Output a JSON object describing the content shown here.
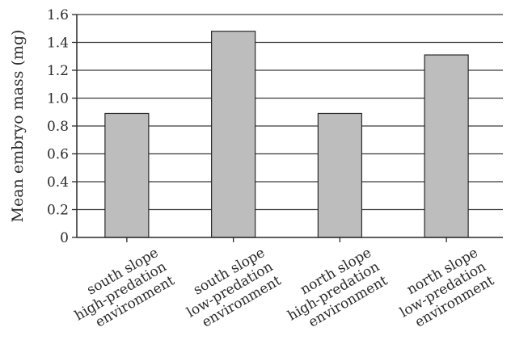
{
  "chart_data": {
    "type": "bar",
    "title": "",
    "xlabel": "",
    "ylabel": "Mean embryo mass (mg)",
    "ylim": [
      0,
      1.6
    ],
    "yticks": [
      0,
      0.2,
      0.4,
      0.6,
      0.8,
      1.0,
      1.2,
      1.4,
      1.6
    ],
    "ytick_labels": [
      "0",
      "0.2",
      "0.4",
      "0.6",
      "0.8",
      "1.0",
      "1.2",
      "1.4",
      "1.6"
    ],
    "grid": true,
    "categories": [
      [
        "south slope",
        "high-predation",
        "environment"
      ],
      [
        "south slope",
        "low-predation",
        "environment"
      ],
      [
        "north slope",
        "high-predation",
        "environment"
      ],
      [
        "north slope",
        "low-predation",
        "environment"
      ]
    ],
    "values": [
      0.89,
      1.48,
      0.89,
      1.31
    ],
    "bar_color": "#bdbdbd",
    "grid_color": "#3a3a3a"
  }
}
